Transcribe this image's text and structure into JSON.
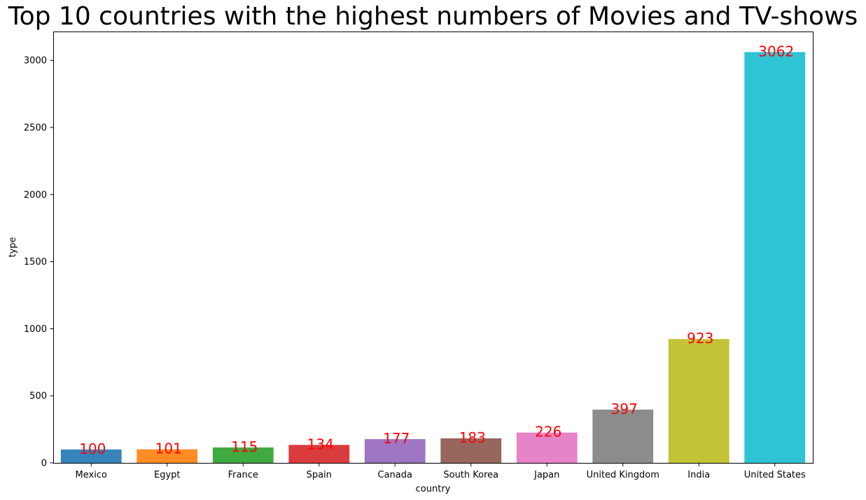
{
  "chart_data": {
    "type": "bar",
    "title": "Top 10 countries with the highest numbers of Movies and TV-shows",
    "xlabel": "country",
    "ylabel": "type",
    "categories": [
      "Mexico",
      "Egypt",
      "France",
      "Spain",
      "Canada",
      "South Korea",
      "Japan",
      "United Kingdom",
      "India",
      "United States"
    ],
    "values": [
      100,
      101,
      115,
      134,
      177,
      183,
      226,
      397,
      923,
      3062
    ],
    "data_labels": [
      "100",
      "101",
      "115",
      "134",
      "177",
      "183",
      "226",
      "397",
      "923",
      "3062"
    ],
    "colors": [
      "#1f77b4",
      "#ff7f0e",
      "#2ca02c",
      "#d62728",
      "#9467bd",
      "#8c564b",
      "#e377c2",
      "#7f7f7f",
      "#bcbd22",
      "#17becf"
    ],
    "bar_alpha": 0.9,
    "data_label_color": "#ff0000",
    "ylim": [
      0,
      3215.1
    ],
    "yticks": [
      0,
      500,
      1000,
      1500,
      2000,
      2500,
      3000
    ],
    "ytick_labels": [
      "0",
      "500",
      "1000",
      "1500",
      "2000",
      "2500",
      "3000"
    ],
    "grid": false,
    "legend": "none"
  }
}
